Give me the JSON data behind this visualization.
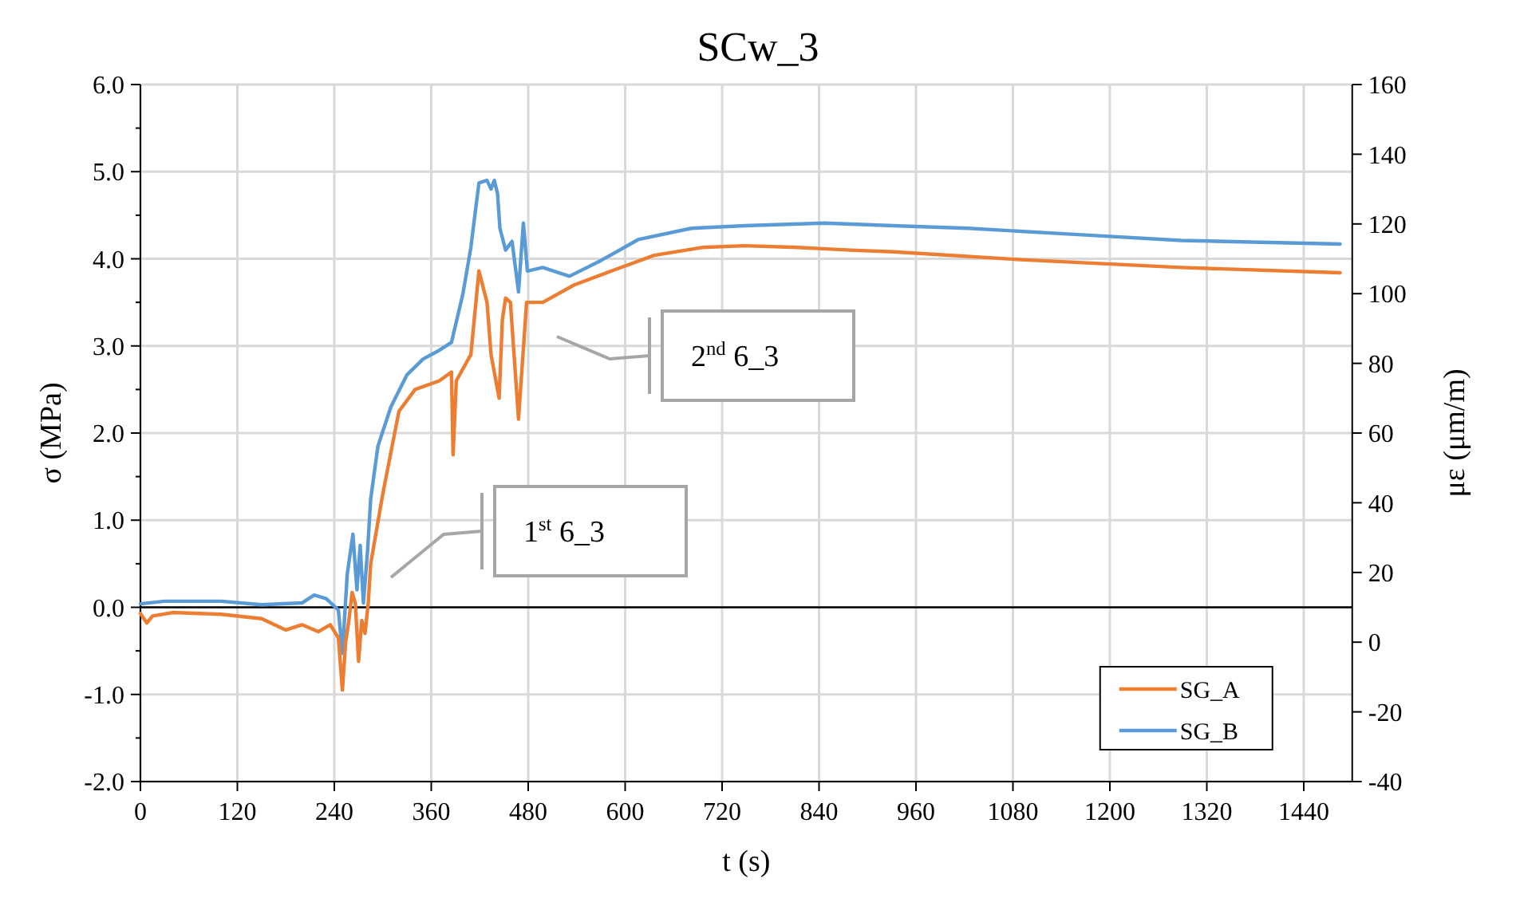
{
  "chart_data": {
    "type": "line",
    "title": "SCw_3",
    "xlabel": "t (s)",
    "ylabel": "σ (MPa)",
    "y2label": "με (μm/m)",
    "xlim": [
      0,
      1500
    ],
    "xticks": [
      0,
      120,
      240,
      360,
      480,
      600,
      720,
      840,
      960,
      1080,
      1200,
      1320,
      1440
    ],
    "ylim": [
      -2,
      6
    ],
    "yticks": [
      {
        "value": -2,
        "label": "-2.0"
      },
      {
        "value": -1,
        "label": "-1.0"
      },
      {
        "value": 0,
        "label": "0.0"
      },
      {
        "value": 1,
        "label": "1.0"
      },
      {
        "value": 2,
        "label": "2.0"
      },
      {
        "value": 3,
        "label": "3.0"
      },
      {
        "value": 4,
        "label": "4.0"
      },
      {
        "value": 5,
        "label": "5.0"
      },
      {
        "value": 6,
        "label": "6.0"
      }
    ],
    "y2lim": [
      -40,
      160
    ],
    "y2ticks": [
      -40,
      -20,
      0,
      20,
      40,
      60,
      80,
      100,
      120,
      140,
      160
    ],
    "grid": true,
    "legend": "bottom right",
    "marker": "none",
    "line_style": "solid",
    "annotations": [
      "1$^{st}$ 6_3",
      "2$^{nd}$ 6_3"
    ],
    "series": [
      {
        "name": "SG_B",
        "color": "#5b9bd5",
        "x": [
          0,
          30,
          100,
          150,
          200,
          215,
          230,
          245,
          250,
          256,
          263,
          268,
          272,
          276,
          281,
          285,
          294,
          310,
          330,
          350,
          370,
          385,
          399,
          409,
          419,
          429,
          434,
          438,
          442,
          445,
          452,
          460,
          468,
          474,
          479,
          498,
          531,
          570,
          616,
          682,
          748,
          847,
          932,
          1025,
          1156,
          1288,
          1485
        ],
        "values": [
          0.04,
          0.07,
          0.07,
          0.03,
          0.05,
          0.14,
          0.1,
          -0.03,
          -0.53,
          0.38,
          0.84,
          0.2,
          0.71,
          0.05,
          0.63,
          1.24,
          1.85,
          2.3,
          2.67,
          2.85,
          2.95,
          3.04,
          3.59,
          4.13,
          4.87,
          4.9,
          4.8,
          4.9,
          4.75,
          4.35,
          4.1,
          4.2,
          3.62,
          4.41,
          3.86,
          3.9,
          3.8,
          3.98,
          4.22,
          4.35,
          4.38,
          4.41,
          4.38,
          4.35,
          4.28,
          4.21,
          4.17
        ]
      },
      {
        "name": "SG_A",
        "color": "#ed7d31",
        "x": [
          0,
          8,
          15,
          40,
          100,
          150,
          180,
          200,
          220,
          235,
          245,
          250,
          254,
          258,
          262,
          266,
          270,
          274,
          278,
          282,
          285,
          300,
          320,
          340,
          370,
          385,
          387,
          391,
          409,
          419,
          429,
          434,
          444,
          448,
          452,
          458,
          464,
          468,
          472,
          478,
          498,
          537,
          583,
          636,
          695,
          748,
          814,
          879,
          932,
          1090,
          1288,
          1485
        ],
        "values": [
          -0.07,
          -0.18,
          -0.1,
          -0.06,
          -0.08,
          -0.13,
          -0.26,
          -0.2,
          -0.28,
          -0.2,
          -0.35,
          -0.95,
          -0.4,
          -0.15,
          0.17,
          0.05,
          -0.62,
          -0.15,
          -0.3,
          0.05,
          0.5,
          1.3,
          2.25,
          2.5,
          2.6,
          2.7,
          1.75,
          2.6,
          2.9,
          3.86,
          3.5,
          2.9,
          2.4,
          3.3,
          3.55,
          3.5,
          2.7,
          2.16,
          2.7,
          3.5,
          3.5,
          3.7,
          3.86,
          4.04,
          4.13,
          4.15,
          4.13,
          4.1,
          4.08,
          3.99,
          3.9,
          3.84
        ]
      }
    ]
  }
}
